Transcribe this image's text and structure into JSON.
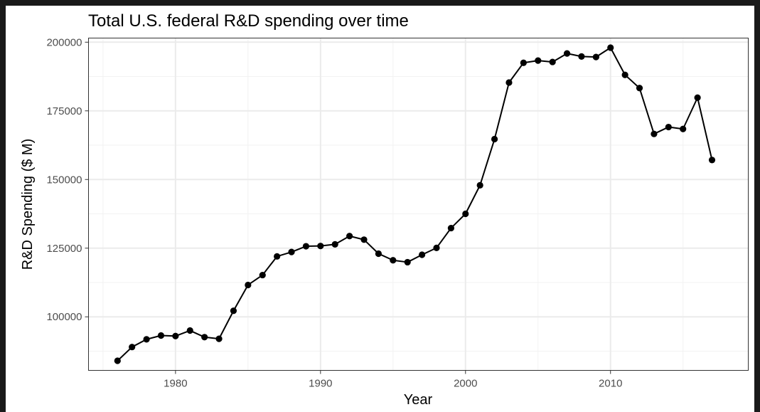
{
  "chart_data": {
    "type": "line",
    "title": "Total U.S. federal R&D spending over time",
    "xlabel": "Year",
    "ylabel": "R&D Spending ($ M)",
    "xlim": [
      1974,
      2019.5
    ],
    "ylim": [
      80500,
      201500
    ],
    "x_ticks": [
      1980,
      1990,
      2000,
      2010
    ],
    "y_ticks": [
      100000,
      125000,
      150000,
      175000,
      200000
    ],
    "grid": true,
    "legend": "none",
    "markers": true,
    "line_color": "#000000",
    "series": [
      {
        "x": [
          1976,
          1977,
          1978,
          1979,
          1980,
          1981,
          1982,
          1983,
          1984,
          1985,
          1986,
          1987,
          1988,
          1989,
          1990,
          1991,
          1992,
          1993,
          1994,
          1995,
          1996,
          1997,
          1998,
          1999,
          2000,
          2001,
          2002,
          2003,
          2004,
          2005,
          2006,
          2007,
          2008,
          2009,
          2010,
          2011,
          2012,
          2013,
          2014,
          2015,
          2016,
          2017
        ],
        "values": [
          84000,
          89000,
          91800,
          93200,
          93000,
          95000,
          92600,
          92000,
          102200,
          111600,
          115200,
          122000,
          123600,
          125700,
          125800,
          126400,
          129400,
          128100,
          123000,
          120600,
          119900,
          122600,
          125100,
          132300,
          137500,
          147900,
          164700,
          185300,
          192500,
          193300,
          192800,
          195900,
          194800,
          194600,
          198000,
          188100,
          183300,
          166600,
          169100,
          168400,
          179800,
          157100
        ]
      }
    ]
  }
}
